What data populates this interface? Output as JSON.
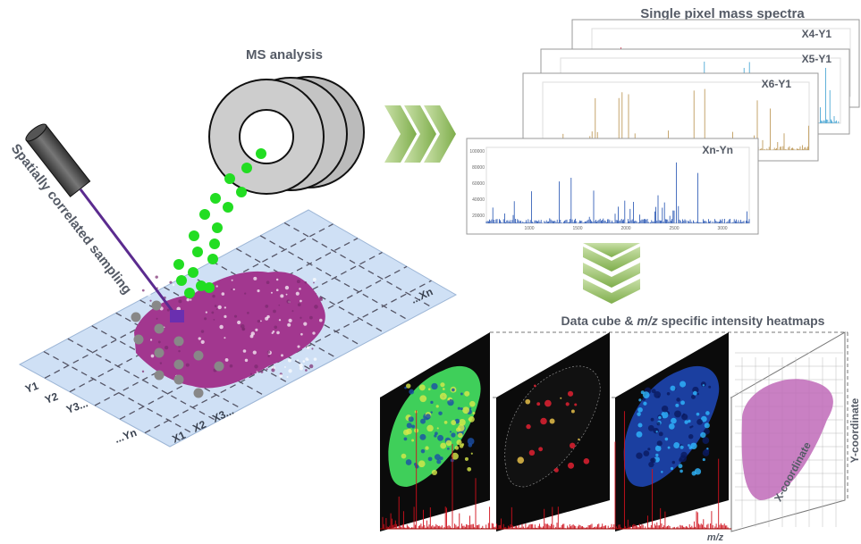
{
  "ms_analysis": {
    "title": "MS analysis"
  },
  "sampling": {
    "label": "Spatially correlated sampling",
    "grid_labels": {
      "y": [
        "Y1",
        "Y2",
        "Y3...",
        "...Yn"
      ],
      "x": [
        "X1",
        "X2",
        "X3...",
        "...Xn"
      ]
    }
  },
  "spectra": {
    "title": "Single pixel mass spectra",
    "cards": [
      "X4-Y1",
      "X5-Y1",
      "X6-Y1",
      "Xn-Yn"
    ],
    "y_axis": [
      "100000",
      "80000",
      "60000",
      "40000",
      "20000"
    ],
    "x_axis": [
      "1000",
      "1500",
      "2000",
      "2500",
      "3000"
    ]
  },
  "data_cube": {
    "title_parts": [
      "Data cube & ",
      "m/z",
      " specific intensity heatmaps"
    ],
    "y_label": "Y-coordinate",
    "x_label": "X-coordinate",
    "axis_label": "m/z"
  }
}
